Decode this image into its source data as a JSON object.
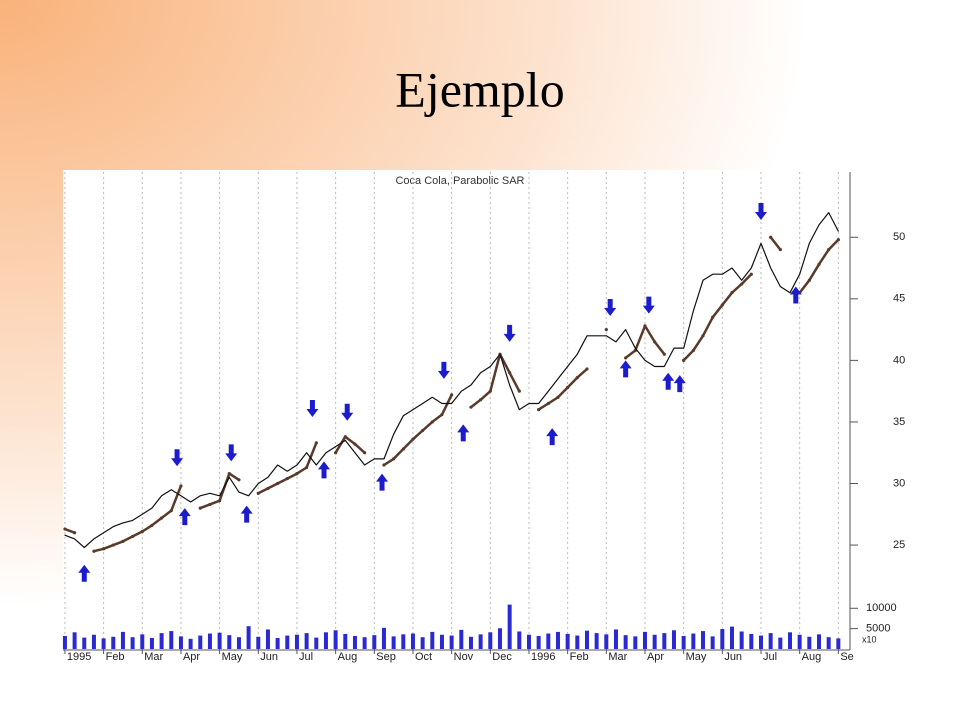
{
  "slide_title": "Ejemplo",
  "chart_data": {
    "type": "stock",
    "title": "Coca Cola, Parabolic SAR",
    "x": [
      0,
      0.25,
      0.5,
      0.75,
      1,
      1.25,
      1.5,
      1.75,
      2,
      2.25,
      2.5,
      2.75,
      3,
      3.25,
      3.5,
      3.75,
      4,
      4.25,
      4.5,
      4.75,
      5,
      5.25,
      5.5,
      5.75,
      6,
      6.25,
      6.5,
      6.75,
      7,
      7.25,
      7.5,
      7.75,
      8,
      8.25,
      8.5,
      8.75,
      9,
      9.25,
      9.5,
      9.75,
      10,
      10.25,
      10.5,
      10.75,
      11,
      11.25,
      11.5,
      11.75,
      12,
      12.25,
      12.5,
      12.75,
      13,
      13.25,
      13.5,
      13.75,
      14,
      14.25,
      14.5,
      14.75,
      15,
      15.25,
      15.5,
      15.75,
      16,
      16.25,
      16.5,
      16.75,
      17,
      17.25,
      17.5,
      17.75,
      18,
      18.25,
      18.5,
      18.75,
      19,
      19.25,
      19.5,
      19.75,
      20
    ],
    "price": {
      "color": "#111111",
      "values": [
        25.8,
        25.5,
        24.8,
        25.5,
        26,
        26.5,
        26.8,
        27,
        27.5,
        28,
        29,
        29.5,
        29,
        28.5,
        29,
        29.2,
        29,
        30.5,
        29.3,
        29,
        30,
        30.5,
        31.5,
        31,
        31.5,
        32.5,
        31.5,
        32.5,
        33,
        33.5,
        32.5,
        31.5,
        32,
        32,
        34,
        35.5,
        36,
        36.5,
        37,
        36.5,
        36.5,
        37.5,
        38,
        39,
        39.5,
        40.5,
        38,
        36,
        36.5,
        36.5,
        37.5,
        38.5,
        39.5,
        40.5,
        42,
        42,
        42,
        41.5,
        42.5,
        41,
        40,
        39.5,
        39.5,
        41,
        41,
        44,
        46.5,
        47,
        47,
        47.5,
        46.5,
        47.5,
        49.5,
        47.5,
        46,
        45.5,
        47,
        49.5,
        51,
        52,
        50.5
      ]
    },
    "sar": {
      "color": "#5a3a2a",
      "values": [
        26.3,
        26,
        null,
        24.5,
        24.7,
        25,
        25.3,
        25.7,
        26.1,
        26.6,
        27.2,
        27.8,
        29.8,
        null,
        28,
        28.3,
        28.6,
        30.8,
        30.3,
        null,
        29.2,
        29.6,
        30,
        30.4,
        30.8,
        31.3,
        33.3,
        null,
        32.5,
        33.8,
        33.2,
        32.5,
        null,
        31.5,
        32,
        32.8,
        33.6,
        34.3,
        35,
        35.6,
        37.2,
        null,
        36.2,
        36.8,
        37.5,
        40.5,
        39,
        37.5,
        null,
        36,
        36.5,
        37,
        37.8,
        38.6,
        39.3,
        null,
        42.5,
        null,
        40.2,
        40.8,
        42.8,
        41.5,
        40.5,
        null,
        40,
        40.8,
        42,
        43.5,
        44.5,
        45.5,
        46.2,
        47,
        null,
        50,
        49,
        null,
        45.5,
        46.5,
        47.8,
        49,
        49.8
      ]
    },
    "volume": {
      "color": "#2a2ad0",
      "values": [
        3200,
        4100,
        2800,
        3500,
        2600,
        3000,
        4200,
        2900,
        3600,
        2700,
        3900,
        4400,
        3100,
        2500,
        3300,
        3800,
        4000,
        3400,
        2900,
        5600,
        3000,
        4800,
        2700,
        3300,
        3500,
        3900,
        2800,
        4100,
        4600,
        3700,
        3200,
        2900,
        3400,
        5200,
        3100,
        3600,
        3800,
        2900,
        4200,
        3500,
        3300,
        4700,
        3000,
        3600,
        4100,
        5100,
        10900,
        4300,
        3500,
        3200,
        3800,
        4200,
        3700,
        3300,
        4500,
        3900,
        3600,
        4800,
        3400,
        3100,
        4200,
        3500,
        3900,
        4600,
        3200,
        3800,
        4400,
        3100,
        4900,
        5500,
        4300,
        3700,
        3300,
        3900,
        2800,
        4100,
        3500,
        3000,
        3600,
        2900,
        2600
      ]
    },
    "down_arrows": {
      "color": "#1c1ccc",
      "x": [
        2.9,
        4.3,
        6.4,
        7.3,
        9.8,
        11.5,
        14.1,
        15.1,
        18.0
      ],
      "y": [
        31.4,
        31.8,
        35.4,
        35.1,
        38.5,
        41.5,
        43.6,
        43.8,
        51.4
      ]
    },
    "up_arrows": {
      "color": "#1c1ccc",
      "x": [
        0.5,
        3.1,
        4.7,
        6.7,
        8.2,
        10.3,
        12.6,
        14.5,
        15.6,
        15.9,
        18.9
      ],
      "y": [
        23.4,
        28,
        28.2,
        31.8,
        30.8,
        34.8,
        34.5,
        40,
        39,
        38.8,
        46
      ]
    },
    "xlim": [
      -0.05,
      20.25
    ],
    "xticks": [
      {
        "value": 0,
        "label": "1995"
      },
      {
        "value": 1,
        "label": "Feb"
      },
      {
        "value": 2,
        "label": "Mar"
      },
      {
        "value": 3,
        "label": "Apr"
      },
      {
        "value": 4,
        "label": "May"
      },
      {
        "value": 5,
        "label": "Jun"
      },
      {
        "value": 6,
        "label": "Jul"
      },
      {
        "value": 7,
        "label": "Aug"
      },
      {
        "value": 8,
        "label": "Sep"
      },
      {
        "value": 9,
        "label": "Oct"
      },
      {
        "value": 10,
        "label": "Nov"
      },
      {
        "value": 11,
        "label": "Dec"
      },
      {
        "value": 12,
        "label": "1996"
      },
      {
        "value": 13,
        "label": "Feb"
      },
      {
        "value": 14,
        "label": "Mar"
      },
      {
        "value": 15,
        "label": "Apr"
      },
      {
        "value": 16,
        "label": "May"
      },
      {
        "value": 17,
        "label": "Jun"
      },
      {
        "value": 18,
        "label": "Jul"
      },
      {
        "value": 19,
        "label": "Aug"
      },
      {
        "value": 20,
        "label": "Se"
      }
    ],
    "ylim": [
      21.35,
      55.3
    ],
    "yticks": [
      25,
      30,
      35,
      40,
      45,
      50
    ],
    "volume_ylim": [
      0,
      14000
    ],
    "volume_yticks": [
      5000,
      10000
    ],
    "volume_unit": "x10",
    "grid": true
  }
}
